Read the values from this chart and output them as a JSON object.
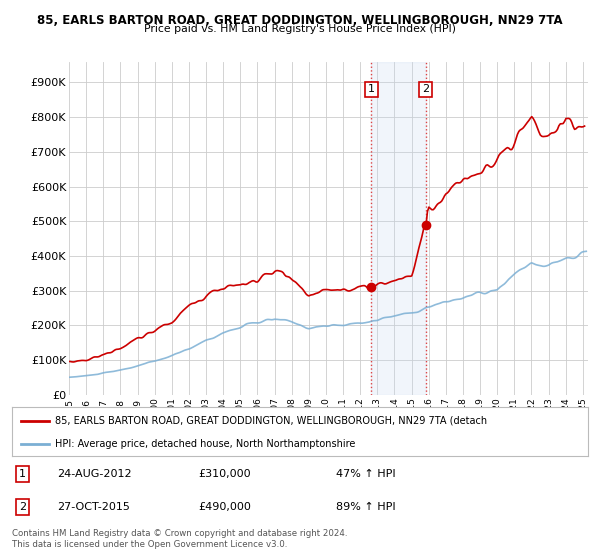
{
  "title1": "85, EARLS BARTON ROAD, GREAT DODDINGTON, WELLINGBOROUGH, NN29 7TA",
  "title2": "Price paid vs. HM Land Registry's House Price Index (HPI)",
  "background_color": "#ffffff",
  "plot_bg_color": "#ffffff",
  "grid_color": "#cccccc",
  "hpi_color": "#7bafd4",
  "price_color": "#cc0000",
  "annotation_fill": "#dce9f5",
  "sale1_date": 2012.65,
  "sale1_price": 310000,
  "sale2_date": 2015.82,
  "sale2_price": 490000,
  "yticks": [
    0,
    100000,
    200000,
    300000,
    400000,
    500000,
    600000,
    700000,
    800000,
    900000
  ],
  "ytick_labels": [
    "£0",
    "£100K",
    "£200K",
    "£300K",
    "£400K",
    "£500K",
    "£600K",
    "£700K",
    "£800K",
    "£900K"
  ],
  "ylim": [
    0,
    960000
  ],
  "xlim_start": 1995.0,
  "xlim_end": 2025.3,
  "legend_line1": "85, EARLS BARTON ROAD, GREAT DODDINGTON, WELLINGBOROUGH, NN29 7TA (detach",
  "legend_line2": "HPI: Average price, detached house, North Northamptonshire",
  "annotation1_label": "1",
  "annotation1_date": "24-AUG-2012",
  "annotation1_price": "£310,000",
  "annotation1_hpi": "47% ↑ HPI",
  "annotation2_label": "2",
  "annotation2_date": "27-OCT-2015",
  "annotation2_price": "£490,000",
  "annotation2_hpi": "89% ↑ HPI",
  "footnote": "Contains HM Land Registry data © Crown copyright and database right 2024.\nThis data is licensed under the Open Government Licence v3.0."
}
